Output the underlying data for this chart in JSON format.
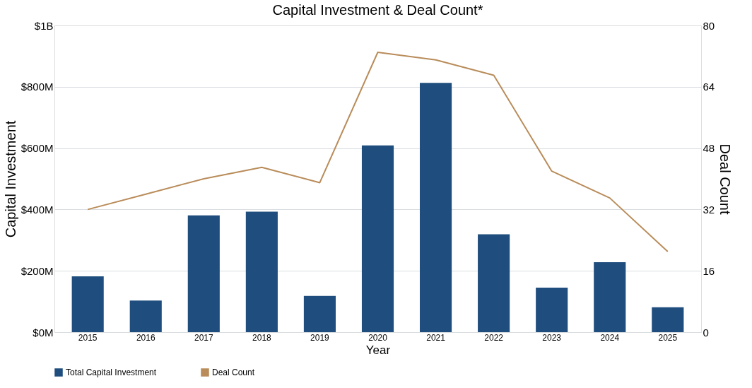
{
  "chart_data": {
    "type": "bar",
    "title": "Capital Investment & Deal Count*",
    "xlabel": "Year",
    "ylabel": "Capital Investment",
    "y2label": "Deal Count",
    "categories": [
      "2015",
      "2016",
      "2017",
      "2018",
      "2019",
      "2020",
      "2021",
      "2022",
      "2023",
      "2024",
      "2025"
    ],
    "series": [
      {
        "name": "Total Capital Investment",
        "color": "#1f4e7e",
        "values": [
          182000000,
          103000000,
          381000000,
          393000000,
          118000000,
          609000000,
          813000000,
          319000000,
          145000000,
          228000000,
          81000000
        ]
      },
      {
        "name": "Deal Count",
        "type": "line",
        "axis": "y2",
        "color": "#b98c5a",
        "values": [
          32,
          36,
          40,
          43,
          39,
          73,
          71,
          67,
          42,
          35,
          21
        ]
      }
    ],
    "ylim": [
      0,
      1000000000
    ],
    "yticks": [
      {
        "value": 0,
        "label": "$0M"
      },
      {
        "value": 200000000,
        "label": "$200M"
      },
      {
        "value": 400000000,
        "label": "$400M"
      },
      {
        "value": 600000000,
        "label": "$600M"
      },
      {
        "value": 800000000,
        "label": "$800M"
      },
      {
        "value": 1000000000,
        "label": "$1B"
      }
    ],
    "y2lim": [
      0,
      80
    ],
    "y2ticks": [
      0,
      16,
      32,
      48,
      64,
      80
    ],
    "grid": "y",
    "legend": "bottom"
  }
}
